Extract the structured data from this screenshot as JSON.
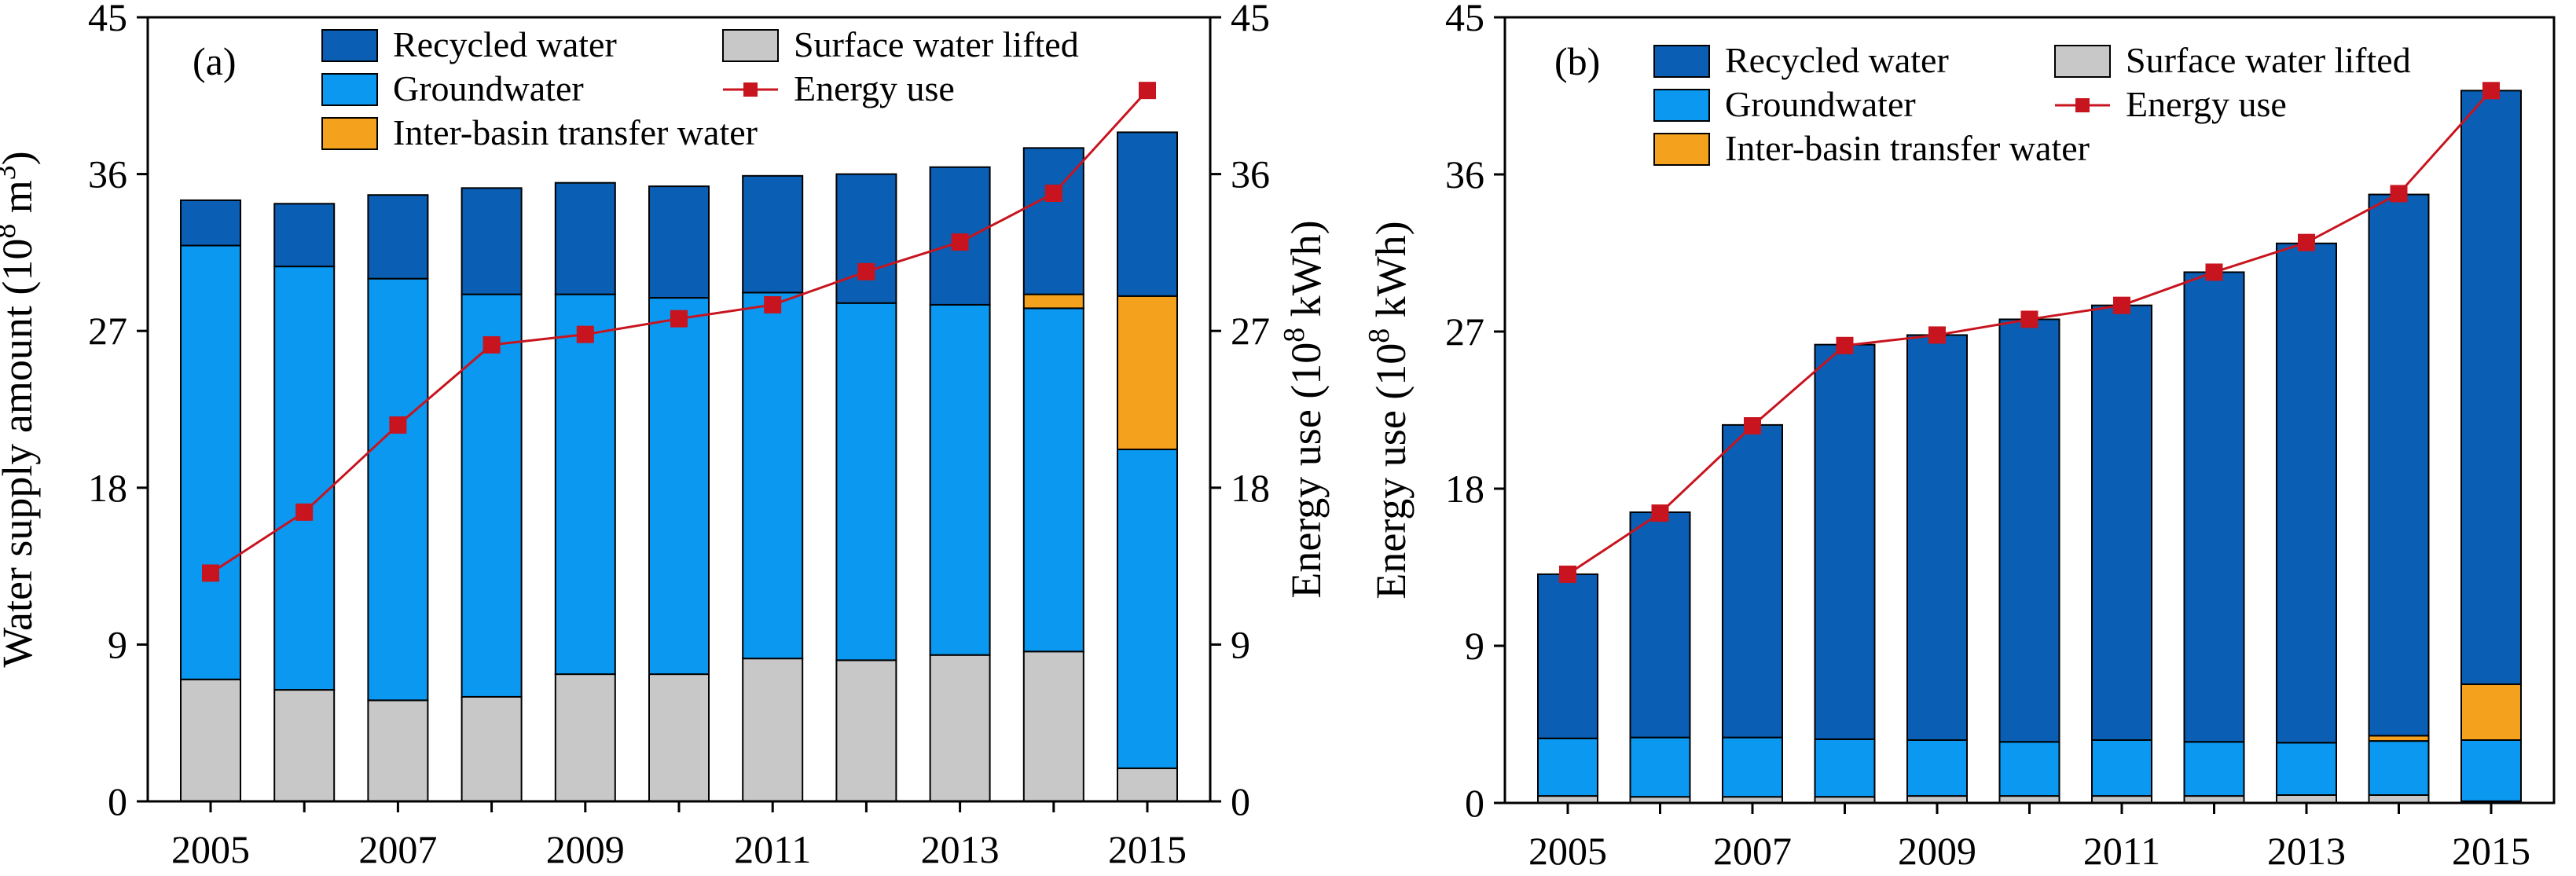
{
  "colors": {
    "recycled": "#0A5FB4",
    "groundwater": "#0A98F0",
    "transfer": "#F4A11E",
    "surface": "#C8C8C8",
    "energy": "#C8141E"
  },
  "chart_data": [
    {
      "type": "bar",
      "stacked": true,
      "panel_label": "(a)",
      "categories": [
        "2005",
        "2006",
        "2007",
        "2008",
        "2009",
        "2010",
        "2011",
        "2012",
        "2013",
        "2014",
        "2015"
      ],
      "x_tick_labels": [
        "2005",
        "2007",
        "2009",
        "2011",
        "2013",
        "2015"
      ],
      "ylabel": "Water supply amount (10⁸ m³)",
      "y2label": "Energy use (10⁸ kWh)",
      "ylim": [
        0,
        45
      ],
      "y2lim": [
        0,
        45
      ],
      "yticks": [
        0,
        9,
        18,
        27,
        36,
        45
      ],
      "series": [
        {
          "name": "Surface water lifted",
          "key": "surface",
          "values": [
            7.0,
            6.4,
            5.8,
            6.0,
            7.3,
            7.3,
            8.2,
            8.1,
            8.4,
            8.6,
            1.9
          ]
        },
        {
          "name": "Groundwater",
          "key": "groundwater",
          "values": [
            24.9,
            24.3,
            24.2,
            23.1,
            21.8,
            21.6,
            21.0,
            20.5,
            20.1,
            19.7,
            18.3
          ]
        },
        {
          "name": "Inter-basin transfer water",
          "key": "transfer",
          "values": [
            0,
            0,
            0,
            0,
            0,
            0,
            0,
            0,
            0,
            0.8,
            8.8
          ]
        },
        {
          "name": "Recycled water",
          "key": "recycled",
          "values": [
            2.6,
            3.6,
            4.8,
            6.1,
            6.4,
            6.4,
            6.7,
            7.4,
            7.9,
            8.4,
            9.4
          ]
        }
      ],
      "line": {
        "name": "Energy use",
        "values": [
          13.1,
          16.6,
          21.6,
          26.2,
          26.8,
          27.7,
          28.5,
          30.4,
          32.1,
          34.9,
          40.8
        ]
      },
      "legend": {
        "placement": "top",
        "entries": [
          {
            "label": "Recycled water",
            "key": "recycled",
            "kind": "box"
          },
          {
            "label": "Surface water lifted",
            "key": "surface",
            "kind": "box"
          },
          {
            "label": "Groundwater",
            "key": "groundwater",
            "kind": "box"
          },
          {
            "label": "Energy use",
            "key": "energy",
            "kind": "line"
          },
          {
            "label": "Inter-basin transfer water",
            "key": "transfer",
            "kind": "box"
          }
        ]
      },
      "grid": false
    },
    {
      "type": "bar",
      "stacked": true,
      "panel_label": "(b)",
      "categories": [
        "2005",
        "2006",
        "2007",
        "2008",
        "2009",
        "2010",
        "2011",
        "2012",
        "2013",
        "2014",
        "2015"
      ],
      "x_tick_labels": [
        "2005",
        "2007",
        "2009",
        "2011",
        "2013",
        "2015"
      ],
      "ylabel": "Energy use (10⁸ kWh)",
      "ylim": [
        0,
        45
      ],
      "yticks": [
        0,
        9,
        18,
        27,
        36,
        45
      ],
      "series": [
        {
          "name": "Surface water lifted",
          "key": "surface",
          "values": [
            0.4,
            0.35,
            0.35,
            0.35,
            0.4,
            0.4,
            0.4,
            0.4,
            0.45,
            0.45,
            0.1
          ]
        },
        {
          "name": "Groundwater",
          "key": "groundwater",
          "values": [
            3.3,
            3.4,
            3.4,
            3.3,
            3.2,
            3.1,
            3.2,
            3.1,
            3.0,
            3.1,
            3.5
          ]
        },
        {
          "name": "Inter-basin transfer water",
          "key": "transfer",
          "values": [
            0,
            0,
            0,
            0,
            0,
            0,
            0,
            0,
            0,
            0.3,
            3.2
          ]
        },
        {
          "name": "Recycled water",
          "key": "recycled",
          "values": [
            9.4,
            12.9,
            17.9,
            22.6,
            23.2,
            24.2,
            24.9,
            26.9,
            28.6,
            31.0,
            34.0
          ]
        }
      ],
      "line": {
        "name": "Energy use",
        "values": [
          13.1,
          16.6,
          21.6,
          26.2,
          26.8,
          27.7,
          28.5,
          30.4,
          32.1,
          34.9,
          40.8
        ]
      },
      "legend": {
        "placement": "top",
        "entries": [
          {
            "label": "Recycled water",
            "key": "recycled",
            "kind": "box"
          },
          {
            "label": "Surface water lifted",
            "key": "surface",
            "kind": "box"
          },
          {
            "label": "Groundwater",
            "key": "groundwater",
            "kind": "box"
          },
          {
            "label": "Energy use",
            "key": "energy",
            "kind": "line"
          },
          {
            "label": "Inter-basin transfer water",
            "key": "transfer",
            "kind": "box"
          }
        ]
      },
      "grid": false
    }
  ]
}
